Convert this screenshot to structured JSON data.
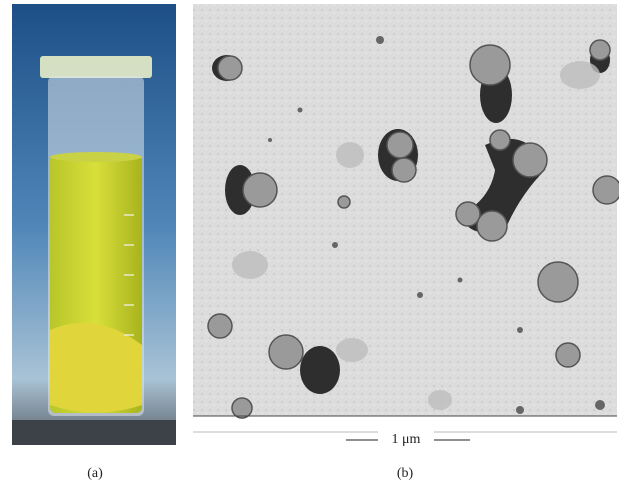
{
  "panels": [
    {
      "caption": "(a)"
    },
    {
      "caption": "(b)",
      "scale_bar": "1 μm"
    }
  ]
}
